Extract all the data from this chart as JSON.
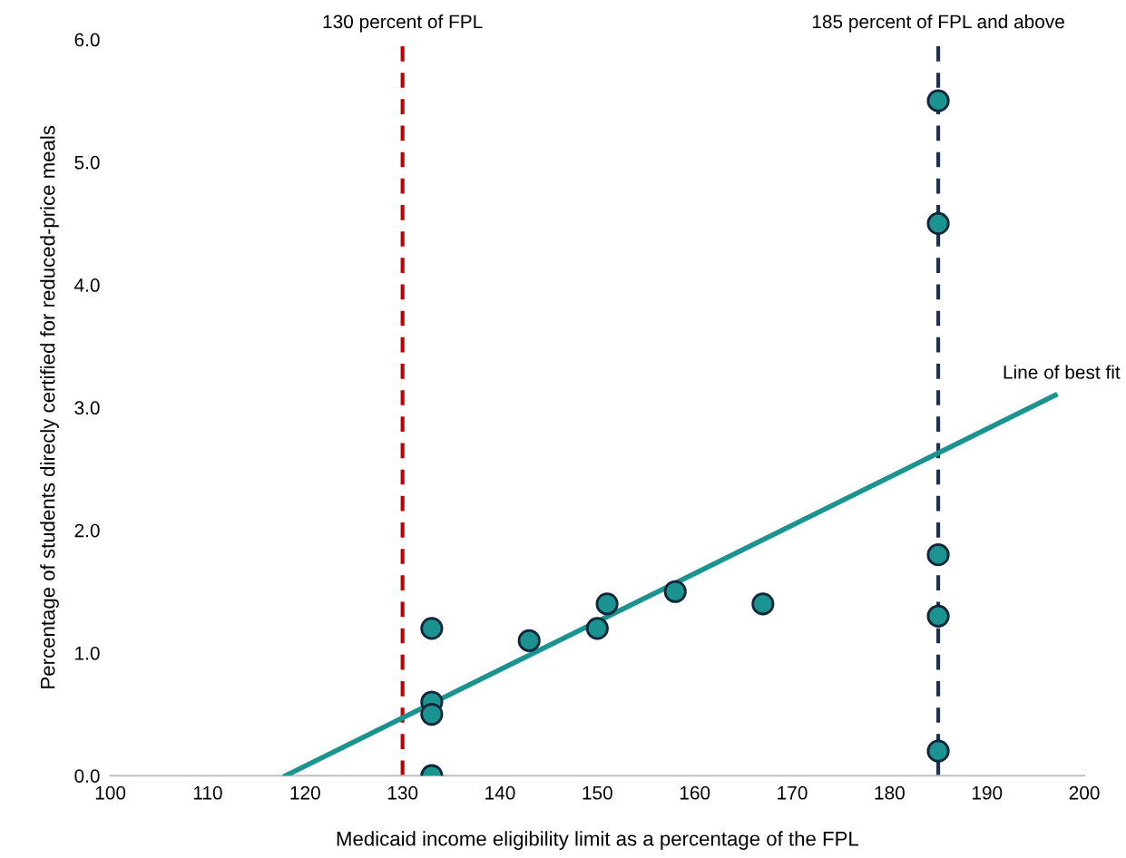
{
  "chart_data": {
    "type": "scatter",
    "xlabel": "Medicaid income eligibility limit as a percentage of the FPL",
    "ylabel": "Percentage of students direcly certified for reduced-price meals",
    "xlim": [
      100,
      200
    ],
    "xticks": [
      100,
      110,
      120,
      130,
      140,
      150,
      160,
      170,
      180,
      190,
      200
    ],
    "ylim": [
      0,
      6
    ],
    "yticks": [
      {
        "value": 0,
        "label": "0.0"
      },
      {
        "value": 1,
        "label": "1.0"
      },
      {
        "value": 2,
        "label": "2.0"
      },
      {
        "value": 3,
        "label": "3.0"
      },
      {
        "value": 4,
        "label": "4.0"
      },
      {
        "value": 5,
        "label": "5.0"
      },
      {
        "value": 6,
        "label": "6.0"
      }
    ],
    "grid": false,
    "series": [
      {
        "type": "line",
        "color": "#1a9391",
        "x": [
          118,
          197
        ],
        "values": [
          0,
          3.1
        ],
        "line_style": "solid",
        "marker": "none"
      },
      {
        "color": "#1a9391",
        "marker": "circle",
        "x": [
          133,
          133,
          133,
          133,
          143,
          150,
          151,
          158,
          167,
          185,
          185,
          185,
          185,
          185
        ],
        "values": [
          1.2,
          0.6,
          0.5,
          0.0,
          1.1,
          1.2,
          1.4,
          1.5,
          1.4,
          5.5,
          4.5,
          1.8,
          1.3,
          0.2
        ]
      }
    ],
    "ref_lines": [
      {
        "axis": "x",
        "value": 130,
        "label": "130 percent of FPL",
        "color": "#c00000",
        "line_style": "dashed"
      },
      {
        "axis": "x",
        "value": 185,
        "label": "185 percent of FPL and above",
        "color": "#1f3050",
        "line_style": "dashed"
      }
    ],
    "annotations": [
      {
        "text": "Line of best fit",
        "x": 197,
        "y": 3.1
      }
    ]
  }
}
